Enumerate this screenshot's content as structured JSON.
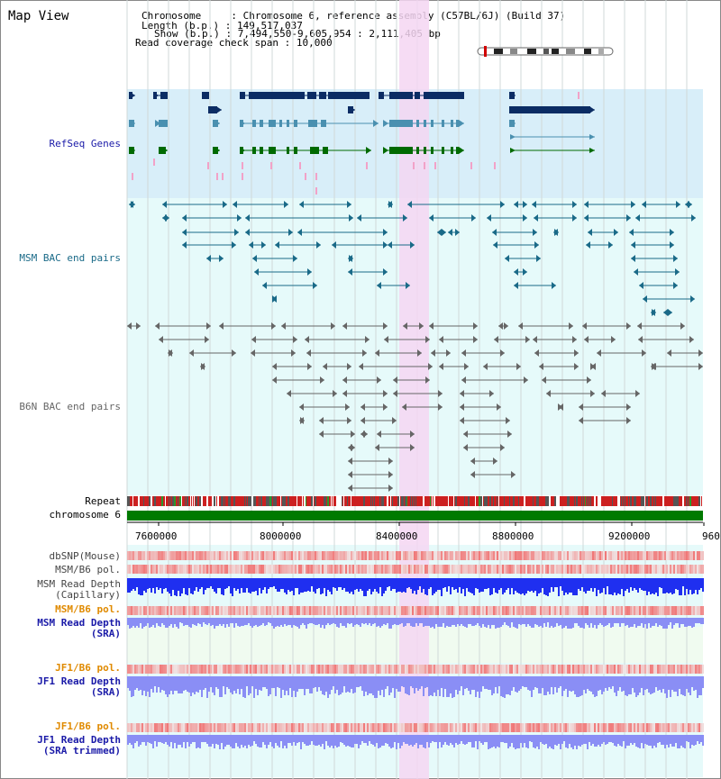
{
  "view_title": "Map View",
  "info": {
    "chromosome_key": "Chromosome",
    "chromosome_value": "Chromosome 6, reference assembly (C57BL/6J) (Build 37)",
    "length_key": "Length (b.p.)",
    "length_value": "149,517,037",
    "show_key": "Show (b.p.)",
    "show_value": "7,494,550-9,605,954 : 2,111,405 bp",
    "read_coverage_key": "Read coverage check span",
    "read_coverage_value": "10,000"
  },
  "tracks": {
    "refseq": "RefSeq Genes",
    "msm_bac": "MSM BAC end pairs",
    "b6n_bac": "B6N BAC end pairs",
    "repeat": "Repeat",
    "chromosome": "chromosome 6",
    "dbsnp": "dbSNP(Mouse)",
    "msm_b6_pol": "MSM/B6 pol.",
    "msm_read_depth_cap_1": "MSM Read Depth",
    "msm_read_depth_cap_2": "(Capillary)",
    "msm_b6_pol_2": "MSM/B6 pol.",
    "msm_read_depth_sra_1": "MSM Read Depth",
    "msm_read_depth_sra_2": "(SRA)",
    "jf1_b6_pol": "JF1/B6 pol.",
    "jf1_read_depth_sra_1": "JF1 Read Depth",
    "jf1_read_depth_sra_2": "(SRA)",
    "jf1_b6_pol_2": "JF1/B6 pol.",
    "jf1_read_depth_trim_1": "JF1 Read Depth",
    "jf1_read_depth_trim_2": "(SRA trimmed)"
  },
  "axis": {
    "ticks": [
      "7600000",
      "8000000",
      "8400000",
      "8800000",
      "9200000",
      "960"
    ]
  },
  "colors": {
    "refseq_bg": "#d8eef9",
    "track_bg": "#e6fafa",
    "highlight": "#f5d6f2",
    "refseq_navy": "#0b2c64",
    "refseq_teal": "#4a90b0",
    "refseq_green": "#006a00",
    "msm_bac": "#1a6a88",
    "b6n_bac": "#666666",
    "chromosome": "#007a00",
    "read_depth_dark": "#1f2ff0",
    "read_depth_light": "#8a8ef5",
    "pol_red": "#f04040",
    "label_blue": "#1a1aa8",
    "label_orange": "#e08a00",
    "label_teal": "#1a6a88"
  }
}
